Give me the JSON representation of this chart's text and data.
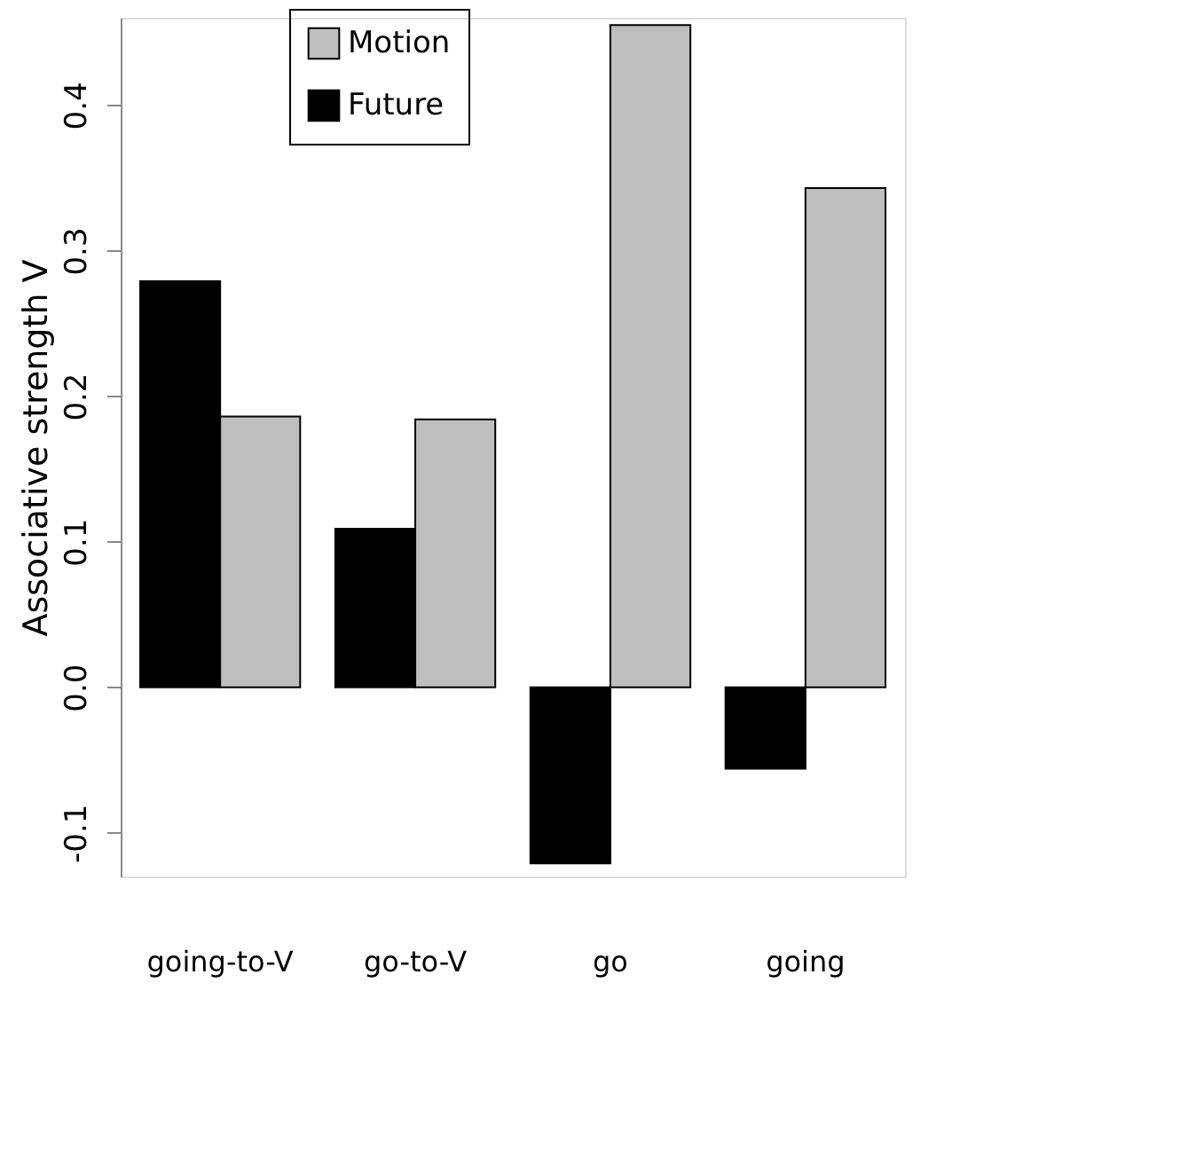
{
  "chart_data": {
    "type": "bar",
    "ylabel": "Associative strength V",
    "categories": [
      "going-to-V",
      "go-to-V",
      "go",
      "going"
    ],
    "series": [
      {
        "name": "Future",
        "color": "#000000",
        "values": [
          0.279,
          0.109,
          -0.121,
          -0.056
        ]
      },
      {
        "name": "Motion",
        "color": "#bebebe",
        "values": [
          0.186,
          0.184,
          0.455,
          0.343
        ]
      }
    ],
    "ylim": [
      -0.13,
      0.46
    ],
    "yticks": [
      -0.1,
      {
        "value": 0,
        "label": "0.0"
      },
      0.1,
      0.2,
      0.3,
      0.4
    ],
    "grid": false,
    "legend": "top"
  }
}
